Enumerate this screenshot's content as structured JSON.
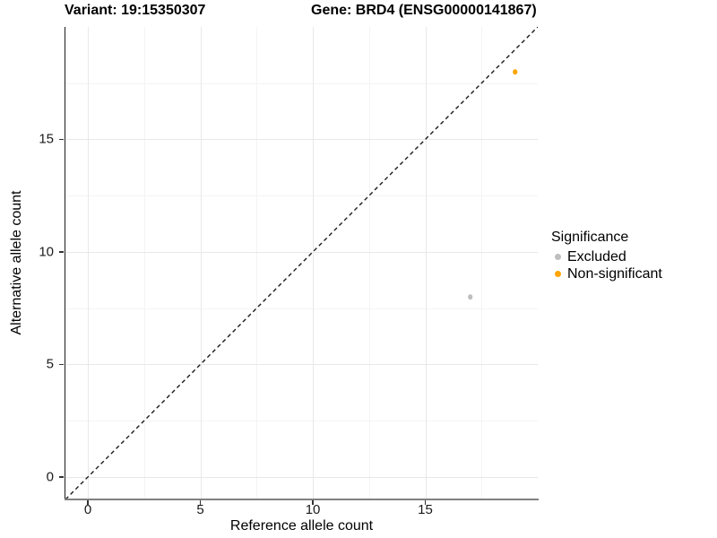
{
  "titles": {
    "variant": "Variant: 19:15350307",
    "gene": "Gene: BRD4 (ENSG00000141867)"
  },
  "colors": {
    "excluded": "#BEBEBE",
    "non_significant": "#FFA500",
    "grid_major": "#e8e8e8",
    "grid_minor": "#f4f4f4",
    "axis_line_left": "#1a1a1a",
    "axis_line_bottom": "#808080",
    "identity_line": "#1a1a1a"
  },
  "chart_data": {
    "type": "scatter",
    "title": "",
    "xlabel": "Reference allele count",
    "ylabel": "Alternative allele count",
    "xlim": [
      -1,
      20
    ],
    "ylim": [
      -1,
      20
    ],
    "x_ticks": [
      0,
      5,
      10,
      15
    ],
    "y_ticks": [
      0,
      5,
      10,
      15
    ],
    "x_minor_ticks": [
      2.5,
      7.5,
      12.5,
      17.5
    ],
    "y_minor_ticks": [
      2.5,
      7.5,
      12.5,
      17.5
    ],
    "grid": "major+minor",
    "identity_line": {
      "slope": 1,
      "intercept": 0,
      "style": "dashed"
    },
    "series": [
      {
        "name": "Excluded",
        "color": "#BEBEBE",
        "points": [
          {
            "x": 17,
            "y": 8
          }
        ]
      },
      {
        "name": "Non-significant",
        "color": "#FFA500",
        "points": [
          {
            "x": 19,
            "y": 18
          }
        ]
      }
    ],
    "legend": {
      "title": "Significance",
      "position": "right",
      "entries": [
        {
          "label": "Excluded",
          "color": "#BEBEBE"
        },
        {
          "label": "Non-significant",
          "color": "#FFA500"
        }
      ]
    }
  }
}
